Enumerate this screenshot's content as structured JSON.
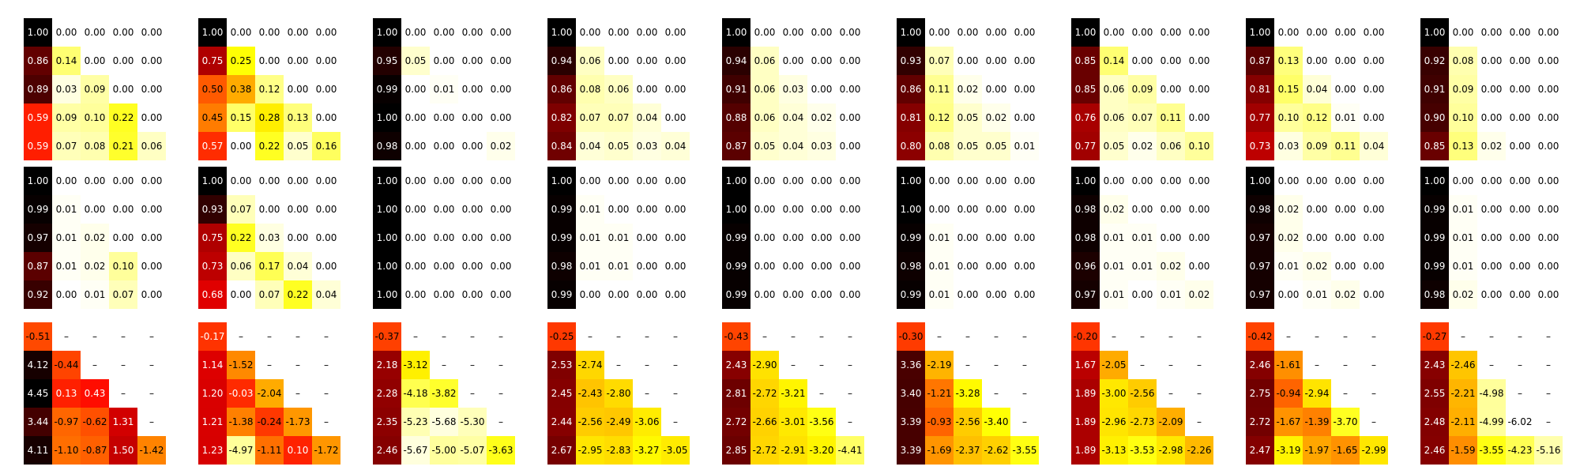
{
  "chart_data": {
    "type": "heatmap",
    "colormap": "hot (black-red-yellow-white, high values dark)",
    "empty_cell_label": "–",
    "grid": false,
    "title": "",
    "rows": [
      {
        "name": "",
        "panels": [
          [
            [
              1.0,
              0.0,
              0.0,
              0.0,
              0.0
            ],
            [
              0.86,
              0.14,
              0.0,
              0.0,
              0.0
            ],
            [
              0.89,
              0.03,
              0.09,
              0.0,
              0.0
            ],
            [
              0.59,
              0.09,
              0.1,
              0.22,
              0.0
            ],
            [
              0.59,
              0.07,
              0.08,
              0.21,
              0.06
            ]
          ],
          [
            [
              1.0,
              0.0,
              0.0,
              0.0,
              0.0
            ],
            [
              0.75,
              0.25,
              0.0,
              0.0,
              0.0
            ],
            [
              0.5,
              0.38,
              0.12,
              0.0,
              0.0
            ],
            [
              0.45,
              0.15,
              0.28,
              0.13,
              0.0
            ],
            [
              0.57,
              0.0,
              0.22,
              0.05,
              0.16
            ]
          ],
          [
            [
              1.0,
              0.0,
              0.0,
              0.0,
              0.0
            ],
            [
              0.95,
              0.05,
              0.0,
              0.0,
              0.0
            ],
            [
              0.99,
              0.0,
              0.01,
              0.0,
              0.0
            ],
            [
              1.0,
              0.0,
              0.0,
              0.0,
              0.0
            ],
            [
              0.98,
              0.0,
              0.0,
              0.0,
              0.02
            ]
          ],
          [
            [
              1.0,
              0.0,
              0.0,
              0.0,
              0.0
            ],
            [
              0.94,
              0.06,
              0.0,
              0.0,
              0.0
            ],
            [
              0.86,
              0.08,
              0.06,
              0.0,
              0.0
            ],
            [
              0.82,
              0.07,
              0.07,
              0.04,
              0.0
            ],
            [
              0.84,
              0.04,
              0.05,
              0.03,
              0.04
            ]
          ],
          [
            [
              1.0,
              0.0,
              0.0,
              0.0,
              0.0
            ],
            [
              0.94,
              0.06,
              0.0,
              0.0,
              0.0
            ],
            [
              0.91,
              0.06,
              0.03,
              0.0,
              0.0
            ],
            [
              0.88,
              0.06,
              0.04,
              0.02,
              0.0
            ],
            [
              0.87,
              0.05,
              0.04,
              0.03,
              0.0
            ]
          ],
          [
            [
              1.0,
              0.0,
              0.0,
              0.0,
              0.0
            ],
            [
              0.93,
              0.07,
              0.0,
              0.0,
              0.0
            ],
            [
              0.86,
              0.11,
              0.02,
              0.0,
              0.0
            ],
            [
              0.81,
              0.12,
              0.05,
              0.02,
              0.0
            ],
            [
              0.8,
              0.08,
              0.05,
              0.05,
              0.01
            ]
          ],
          [
            [
              1.0,
              0.0,
              0.0,
              0.0,
              0.0
            ],
            [
              0.85,
              0.14,
              0.0,
              0.0,
              0.0
            ],
            [
              0.85,
              0.06,
              0.09,
              0.0,
              0.0
            ],
            [
              0.76,
              0.06,
              0.07,
              0.11,
              0.0
            ],
            [
              0.77,
              0.05,
              0.02,
              0.06,
              0.1
            ]
          ],
          [
            [
              1.0,
              0.0,
              0.0,
              0.0,
              0.0
            ],
            [
              0.87,
              0.13,
              0.0,
              0.0,
              0.0
            ],
            [
              0.81,
              0.15,
              0.04,
              0.0,
              0.0
            ],
            [
              0.77,
              0.1,
              0.12,
              0.01,
              0.0
            ],
            [
              0.73,
              0.03,
              0.09,
              0.11,
              0.04
            ]
          ],
          [
            [
              1.0,
              0.0,
              0.0,
              0.0,
              0.0
            ],
            [
              0.92,
              0.08,
              0.0,
              0.0,
              0.0
            ],
            [
              0.91,
              0.09,
              0.0,
              0.0,
              0.0
            ],
            [
              0.9,
              0.1,
              0.0,
              0.0,
              0.0
            ],
            [
              0.85,
              0.13,
              0.02,
              0.0,
              0.0
            ]
          ]
        ]
      },
      {
        "name": "",
        "panels": [
          [
            [
              1.0,
              0.0,
              0.0,
              0.0,
              0.0
            ],
            [
              0.99,
              0.01,
              0.0,
              0.0,
              0.0
            ],
            [
              0.97,
              0.01,
              0.02,
              0.0,
              0.0
            ],
            [
              0.87,
              0.01,
              0.02,
              0.1,
              0.0
            ],
            [
              0.92,
              0.0,
              0.01,
              0.07,
              0.0
            ]
          ],
          [
            [
              1.0,
              0.0,
              0.0,
              0.0,
              0.0
            ],
            [
              0.93,
              0.07,
              0.0,
              0.0,
              0.0
            ],
            [
              0.75,
              0.22,
              0.03,
              0.0,
              0.0
            ],
            [
              0.73,
              0.06,
              0.17,
              0.04,
              0.0
            ],
            [
              0.68,
              0.0,
              0.07,
              0.22,
              0.04
            ]
          ],
          [
            [
              1.0,
              0.0,
              0.0,
              0.0,
              0.0
            ],
            [
              1.0,
              0.0,
              0.0,
              0.0,
              0.0
            ],
            [
              1.0,
              0.0,
              0.0,
              0.0,
              0.0
            ],
            [
              1.0,
              0.0,
              0.0,
              0.0,
              0.0
            ],
            [
              1.0,
              0.0,
              0.0,
              0.0,
              0.0
            ]
          ],
          [
            [
              1.0,
              0.0,
              0.0,
              0.0,
              0.0
            ],
            [
              0.99,
              0.01,
              0.0,
              0.0,
              0.0
            ],
            [
              0.99,
              0.01,
              0.01,
              0.0,
              0.0
            ],
            [
              0.98,
              0.01,
              0.01,
              0.0,
              0.0
            ],
            [
              0.99,
              0.0,
              0.0,
              0.0,
              0.0
            ]
          ],
          [
            [
              1.0,
              0.0,
              0.0,
              0.0,
              0.0
            ],
            [
              1.0,
              0.0,
              0.0,
              0.0,
              0.0
            ],
            [
              0.99,
              0.0,
              0.0,
              0.0,
              0.0
            ],
            [
              0.99,
              0.0,
              0.0,
              0.0,
              0.0
            ],
            [
              0.99,
              0.0,
              0.0,
              0.0,
              0.0
            ]
          ],
          [
            [
              1.0,
              0.0,
              0.0,
              0.0,
              0.0
            ],
            [
              1.0,
              0.0,
              0.0,
              0.0,
              0.0
            ],
            [
              0.99,
              0.01,
              0.0,
              0.0,
              0.0
            ],
            [
              0.98,
              0.01,
              0.0,
              0.0,
              0.0
            ],
            [
              0.99,
              0.01,
              0.0,
              0.0,
              0.0
            ]
          ],
          [
            [
              1.0,
              0.0,
              0.0,
              0.0,
              0.0
            ],
            [
              0.98,
              0.02,
              0.0,
              0.0,
              0.0
            ],
            [
              0.98,
              0.01,
              0.01,
              0.0,
              0.0
            ],
            [
              0.96,
              0.01,
              0.01,
              0.02,
              0.0
            ],
            [
              0.97,
              0.01,
              0.0,
              0.01,
              0.02
            ]
          ],
          [
            [
              1.0,
              0.0,
              0.0,
              0.0,
              0.0
            ],
            [
              0.98,
              0.02,
              0.0,
              0.0,
              0.0
            ],
            [
              0.97,
              0.02,
              0.0,
              0.0,
              0.0
            ],
            [
              0.97,
              0.01,
              0.02,
              0.0,
              0.0
            ],
            [
              0.97,
              0.0,
              0.01,
              0.02,
              0.0
            ]
          ],
          [
            [
              1.0,
              0.0,
              0.0,
              0.0,
              0.0
            ],
            [
              0.99,
              0.01,
              0.0,
              0.0,
              0.0
            ],
            [
              0.99,
              0.01,
              0.0,
              0.0,
              0.0
            ],
            [
              0.99,
              0.01,
              0.0,
              0.0,
              0.0
            ],
            [
              0.98,
              0.02,
              0.0,
              0.0,
              0.0
            ]
          ]
        ]
      },
      {
        "name": "",
        "panels": [
          [
            [
              -0.51,
              null,
              null,
              null,
              null
            ],
            [
              4.12,
              -0.44,
              null,
              null,
              null
            ],
            [
              4.45,
              0.13,
              0.43,
              null,
              null
            ],
            [
              3.44,
              -0.97,
              -0.62,
              1.31,
              null
            ],
            [
              4.11,
              -1.1,
              -0.87,
              1.5,
              -1.42
            ]
          ],
          [
            [
              -0.17,
              null,
              null,
              null,
              null
            ],
            [
              1.14,
              -1.52,
              null,
              null,
              null
            ],
            [
              1.2,
              -0.03,
              -2.04,
              null,
              null
            ],
            [
              1.21,
              -1.38,
              -0.24,
              -1.73,
              null
            ],
            [
              1.23,
              -4.97,
              -1.11,
              0.1,
              -1.72
            ]
          ],
          [
            [
              -0.37,
              null,
              null,
              null,
              null
            ],
            [
              2.18,
              -3.12,
              null,
              null,
              null
            ],
            [
              2.28,
              -4.18,
              -3.82,
              null,
              null
            ],
            [
              2.35,
              -5.23,
              -5.68,
              -5.3,
              null
            ],
            [
              2.46,
              -5.67,
              -5.0,
              -5.07,
              -3.63
            ]
          ],
          [
            [
              -0.25,
              null,
              null,
              null,
              null
            ],
            [
              2.53,
              -2.74,
              null,
              null,
              null
            ],
            [
              2.45,
              -2.43,
              -2.8,
              null,
              null
            ],
            [
              2.44,
              -2.56,
              -2.49,
              -3.06,
              null
            ],
            [
              2.67,
              -2.95,
              -2.83,
              -3.27,
              -3.05
            ]
          ],
          [
            [
              -0.43,
              null,
              null,
              null,
              null
            ],
            [
              2.43,
              -2.9,
              null,
              null,
              null
            ],
            [
              2.81,
              -2.72,
              -3.21,
              null,
              null
            ],
            [
              2.72,
              -2.66,
              -3.01,
              -3.56,
              null
            ],
            [
              2.85,
              -2.72,
              -2.91,
              -3.2,
              -4.41
            ]
          ],
          [
            [
              -0.3,
              null,
              null,
              null,
              null
            ],
            [
              3.36,
              -2.19,
              null,
              null,
              null
            ],
            [
              3.4,
              -1.21,
              -3.28,
              null,
              null
            ],
            [
              3.39,
              -0.93,
              -2.56,
              -3.4,
              null
            ],
            [
              3.39,
              -1.69,
              -2.37,
              -2.62,
              -3.55
            ]
          ],
          [
            [
              -0.2,
              null,
              null,
              null,
              null
            ],
            [
              1.67,
              -2.05,
              null,
              null,
              null
            ],
            [
              1.89,
              -3.0,
              -2.56,
              null,
              null
            ],
            [
              1.89,
              -2.96,
              -2.73,
              -2.09,
              null
            ],
            [
              1.89,
              -3.13,
              -3.53,
              -2.98,
              -2.26
            ]
          ],
          [
            [
              -0.42,
              null,
              null,
              null,
              null
            ],
            [
              2.46,
              -1.61,
              null,
              null,
              null
            ],
            [
              2.75,
              -0.94,
              -2.94,
              null,
              null
            ],
            [
              2.72,
              -1.67,
              -1.39,
              -3.7,
              null
            ],
            [
              2.47,
              -3.19,
              -1.97,
              -1.65,
              -2.99
            ]
          ],
          [
            [
              -0.27,
              null,
              null,
              null,
              null
            ],
            [
              2.43,
              -2.46,
              null,
              null,
              null
            ],
            [
              2.55,
              -2.21,
              -4.98,
              null,
              null
            ],
            [
              2.48,
              -2.11,
              -4.99,
              -6.02,
              null
            ],
            [
              2.46,
              -1.59,
              -3.55,
              -4.23,
              -5.16
            ]
          ]
        ]
      }
    ]
  }
}
